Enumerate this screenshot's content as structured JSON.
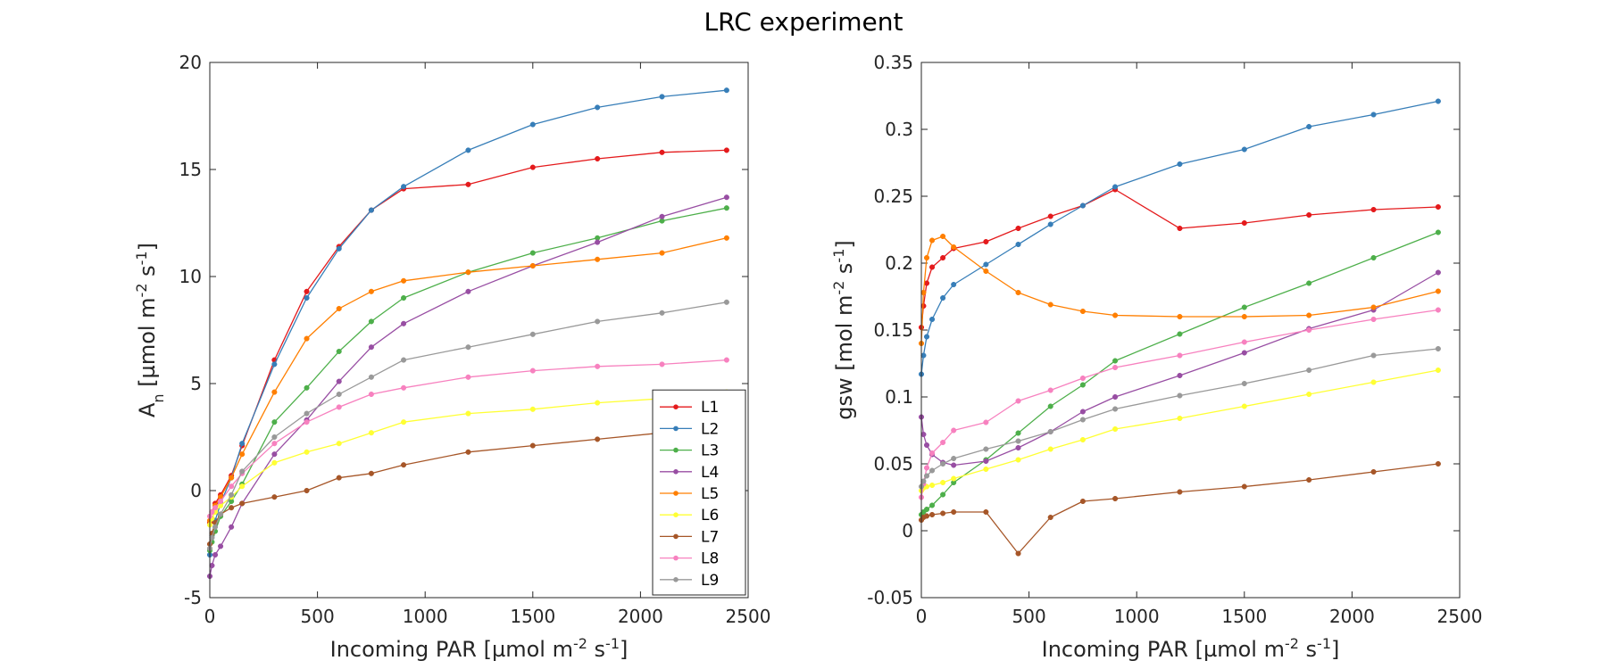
{
  "figure": {
    "title": "LRC experiment"
  },
  "colors": {
    "L1": "#e41a1c",
    "L2": "#377eb8",
    "L3": "#4daf4a",
    "L4": "#984ea3",
    "L5": "#ff7f00",
    "L6": "#ffff33",
    "L7": "#a65628",
    "L8": "#f781bf",
    "L9": "#999999"
  },
  "chart_data": [
    {
      "type": "line",
      "title": "",
      "xlabel": {
        "main": "Incoming PAR [µmol m",
        "sup1": "-2",
        "mid": " s",
        "sup2": "-1",
        "end": "]"
      },
      "ylabel": {
        "main": "A",
        "sub": "n",
        "rest": " [µmol m",
        "sup1": "-2",
        "mid": " s",
        "sup2": "-1",
        "end": "]"
      },
      "xlim": [
        0,
        2500
      ],
      "ylim": [
        -5,
        20
      ],
      "xticks": [
        0,
        500,
        1000,
        1500,
        2000,
        2500
      ],
      "xtick_labels": [
        "0",
        "500",
        "1000",
        "1500",
        "2000",
        "2500"
      ],
      "yticks": [
        -5,
        0,
        5,
        10,
        15,
        20
      ],
      "ytick_labels": [
        "-5",
        "0",
        "5",
        "10",
        "15",
        "20"
      ],
      "legend": {
        "position": "bottom-right",
        "entries": [
          "L1",
          "L2",
          "L3",
          "L4",
          "L5",
          "L6",
          "L7",
          "L8",
          "L9"
        ]
      },
      "x": [
        0,
        10,
        25,
        50,
        100,
        150,
        300,
        450,
        600,
        750,
        900,
        1200,
        1500,
        1800,
        2100,
        2400
      ],
      "series": [
        {
          "name": "L1",
          "values": [
            -1.5,
            -1.0,
            -0.6,
            -0.2,
            0.7,
            2.1,
            6.1,
            9.3,
            11.4,
            13.1,
            14.1,
            14.3,
            15.1,
            15.5,
            15.8,
            15.9
          ]
        },
        {
          "name": "L2",
          "values": [
            -3.0,
            -2.1,
            -1.4,
            -0.6,
            0.6,
            2.2,
            5.9,
            9.0,
            11.3,
            13.1,
            14.2,
            15.9,
            17.1,
            17.9,
            18.4,
            18.7
          ]
        },
        {
          "name": "L3",
          "values": [
            -2.8,
            -2.4,
            -1.9,
            -1.2,
            -0.5,
            0.3,
            3.2,
            4.8,
            6.5,
            7.9,
            9.0,
            10.2,
            11.1,
            11.8,
            12.6,
            13.2
          ]
        },
        {
          "name": "L4",
          "values": [
            -4.0,
            -3.5,
            -3.0,
            -2.6,
            -1.7,
            -0.6,
            1.7,
            3.3,
            5.1,
            6.7,
            7.8,
            9.3,
            10.5,
            11.6,
            12.8,
            13.7
          ]
        },
        {
          "name": "L5",
          "values": [
            -1.4,
            -1.0,
            -0.7,
            -0.3,
            0.6,
            1.7,
            4.6,
            7.1,
            8.5,
            9.3,
            9.8,
            10.2,
            10.5,
            10.8,
            11.1,
            11.8
          ]
        },
        {
          "name": "L6",
          "values": [
            -1.6,
            -1.3,
            -1.0,
            -0.7,
            -0.3,
            0.2,
            1.3,
            1.8,
            2.2,
            2.7,
            3.2,
            3.6,
            3.8,
            4.1,
            4.3,
            4.6
          ]
        },
        {
          "name": "L7",
          "values": [
            -2.5,
            -2.0,
            -1.5,
            -1.1,
            -0.8,
            -0.6,
            -0.3,
            0.0,
            0.6,
            0.8,
            1.2,
            1.8,
            2.1,
            2.4,
            2.7,
            3.1
          ]
        },
        {
          "name": "L8",
          "values": [
            -1.2,
            -1.0,
            -0.8,
            -0.5,
            0.2,
            0.8,
            2.2,
            3.2,
            3.9,
            4.5,
            4.8,
            5.3,
            5.6,
            5.8,
            5.9,
            6.1
          ]
        },
        {
          "name": "L9",
          "values": [
            -2.7,
            -2.2,
            -1.7,
            -1.1,
            -0.2,
            0.9,
            2.5,
            3.6,
            4.5,
            5.3,
            6.1,
            6.7,
            7.3,
            7.9,
            8.3,
            8.8
          ]
        }
      ]
    },
    {
      "type": "line",
      "title": "",
      "xlabel": {
        "main": "Incoming PAR [µmol m",
        "sup1": "-2",
        "mid": " s",
        "sup2": "-1",
        "end": "]"
      },
      "ylabel": {
        "main": "gsw [mol m",
        "sup1": "-2",
        "mid": " s",
        "sup2": "-1",
        "end": "]"
      },
      "xlim": [
        0,
        2500
      ],
      "ylim": [
        -0.05,
        0.35
      ],
      "xticks": [
        0,
        500,
        1000,
        1500,
        2000,
        2500
      ],
      "xtick_labels": [
        "0",
        "500",
        "1000",
        "1500",
        "2000",
        "2500"
      ],
      "yticks": [
        -0.05,
        0,
        0.05,
        0.1,
        0.15,
        0.2,
        0.25,
        0.3,
        0.35
      ],
      "ytick_labels": [
        "-0.05",
        "0",
        "0.05",
        "0.1",
        "0.15",
        "0.2",
        "0.25",
        "0.3",
        "0.35"
      ],
      "x": [
        0,
        10,
        25,
        50,
        100,
        150,
        300,
        450,
        600,
        750,
        900,
        1200,
        1500,
        1800,
        2100,
        2400
      ],
      "series": [
        {
          "name": "L1",
          "values": [
            0.152,
            0.168,
            0.185,
            0.197,
            0.204,
            0.211,
            0.216,
            0.226,
            0.235,
            0.243,
            0.255,
            0.226,
            0.23,
            0.236,
            0.24,
            0.242
          ]
        },
        {
          "name": "L2",
          "values": [
            0.117,
            0.131,
            0.145,
            0.158,
            0.174,
            0.184,
            0.199,
            0.214,
            0.229,
            0.243,
            0.257,
            0.274,
            0.285,
            0.302,
            0.311,
            0.321
          ]
        },
        {
          "name": "L3",
          "values": [
            0.012,
            0.014,
            0.016,
            0.019,
            0.027,
            0.036,
            0.053,
            0.073,
            0.093,
            0.109,
            0.127,
            0.147,
            0.167,
            0.185,
            0.204,
            0.223
          ]
        },
        {
          "name": "L4",
          "values": [
            0.085,
            0.072,
            0.064,
            0.057,
            0.051,
            0.049,
            0.052,
            0.062,
            0.074,
            0.089,
            0.1,
            0.116,
            0.133,
            0.151,
            0.165,
            0.193
          ]
        },
        {
          "name": "L5",
          "values": [
            0.14,
            0.178,
            0.204,
            0.217,
            0.22,
            0.212,
            0.194,
            0.178,
            0.169,
            0.164,
            0.161,
            0.16,
            0.16,
            0.161,
            0.167,
            0.179
          ]
        },
        {
          "name": "L6",
          "values": [
            0.03,
            0.032,
            0.033,
            0.034,
            0.036,
            0.039,
            0.046,
            0.053,
            0.061,
            0.068,
            0.076,
            0.084,
            0.093,
            0.102,
            0.111,
            0.12
          ]
        },
        {
          "name": "L7",
          "values": [
            0.008,
            0.01,
            0.011,
            0.012,
            0.013,
            0.014,
            0.014,
            -0.017,
            0.01,
            0.022,
            0.024,
            0.029,
            0.033,
            0.038,
            0.044,
            0.05
          ]
        },
        {
          "name": "L8",
          "values": [
            0.025,
            0.035,
            0.047,
            0.058,
            0.066,
            0.075,
            0.081,
            0.097,
            0.105,
            0.114,
            0.122,
            0.131,
            0.141,
            0.15,
            0.158,
            0.165
          ]
        },
        {
          "name": "L9",
          "values": [
            0.033,
            0.037,
            0.041,
            0.045,
            0.05,
            0.054,
            0.061,
            0.067,
            0.074,
            0.083,
            0.091,
            0.101,
            0.11,
            0.12,
            0.131,
            0.136
          ]
        }
      ]
    }
  ]
}
